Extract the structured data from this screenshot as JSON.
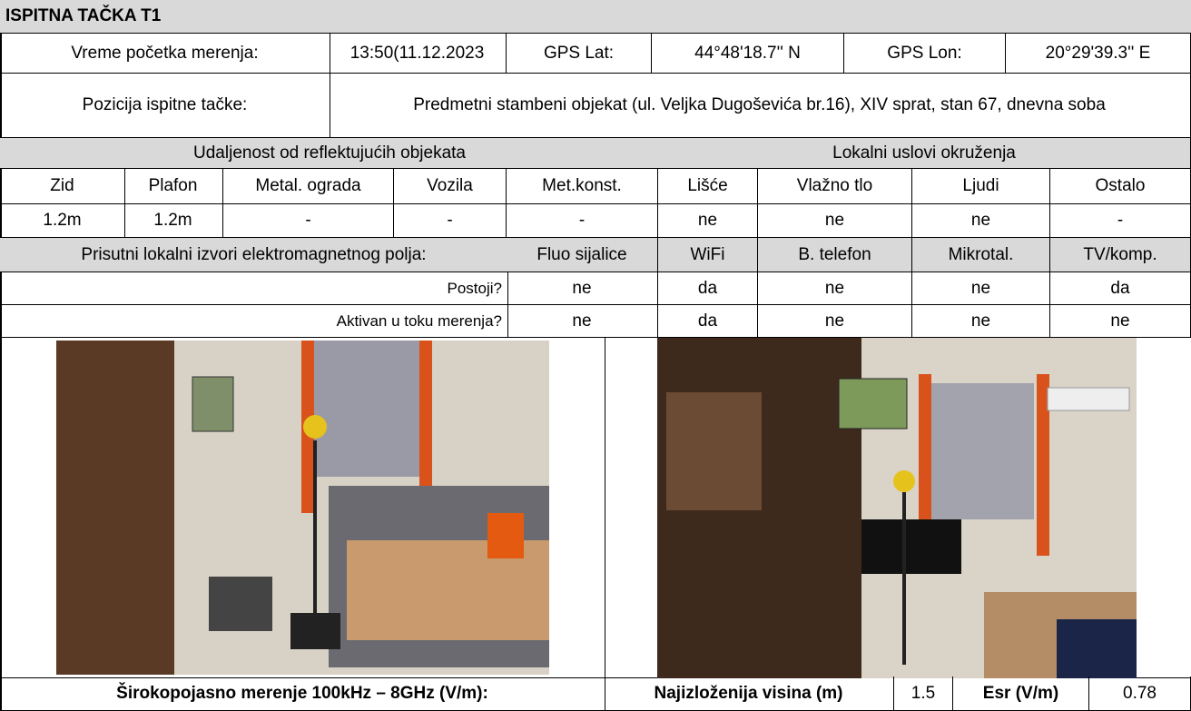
{
  "title": "ISPITNA TAČKA T1",
  "info": {
    "start_label": "Vreme početka merenja:",
    "start_value": "13:50(11.12.2023",
    "lat_label": "GPS Lat:",
    "lat_value": "44°48'18.7'' N",
    "lon_label": "GPS Lon:",
    "lon_value": "20°29'39.3'' E"
  },
  "position": {
    "label": "Pozicija ispitne tačke:",
    "value": "Predmetni stambeni objekat (ul. Veljka Dugoševića br.16), XIV sprat, stan 67, dnevna soba"
  },
  "distance": {
    "header": "Udaljenost od reflektujućih objekata",
    "columns": [
      "Zid",
      "Plafon",
      "Metal. ograda",
      "Vozila",
      "Met.konst."
    ],
    "values": [
      "1.2m",
      "1.2m",
      "-",
      "-",
      "-"
    ]
  },
  "environment": {
    "header": "Lokalni uslovi okruženja",
    "columns": [
      "Lišće",
      "Vlažno tlo",
      "Ljudi",
      "Ostalo"
    ],
    "values": [
      "ne",
      "ne",
      "ne",
      "-"
    ]
  },
  "sources": {
    "header": "Prisutni lokalni izvori elektromagnetnog polja:",
    "columns": [
      "Fluo sijalice",
      "WiFi",
      "B. telefon",
      "Mikrotal.",
      "TV/komp."
    ],
    "rows": [
      {
        "label": "Postoji?",
        "values": [
          "ne",
          "da",
          "ne",
          "ne",
          "da"
        ]
      },
      {
        "label": "Aktivan u toku merenja?",
        "values": [
          "ne",
          "da",
          "ne",
          "ne",
          "ne"
        ]
      }
    ]
  },
  "measurement": {
    "label": "Širokopojasno merenje 100kHz – 8GHz (V/m):",
    "height_label": "Najizloženija visina (m)",
    "height_value": 1.5,
    "esr_label": "Esr (V/m)",
    "esr_value": 0.78
  }
}
